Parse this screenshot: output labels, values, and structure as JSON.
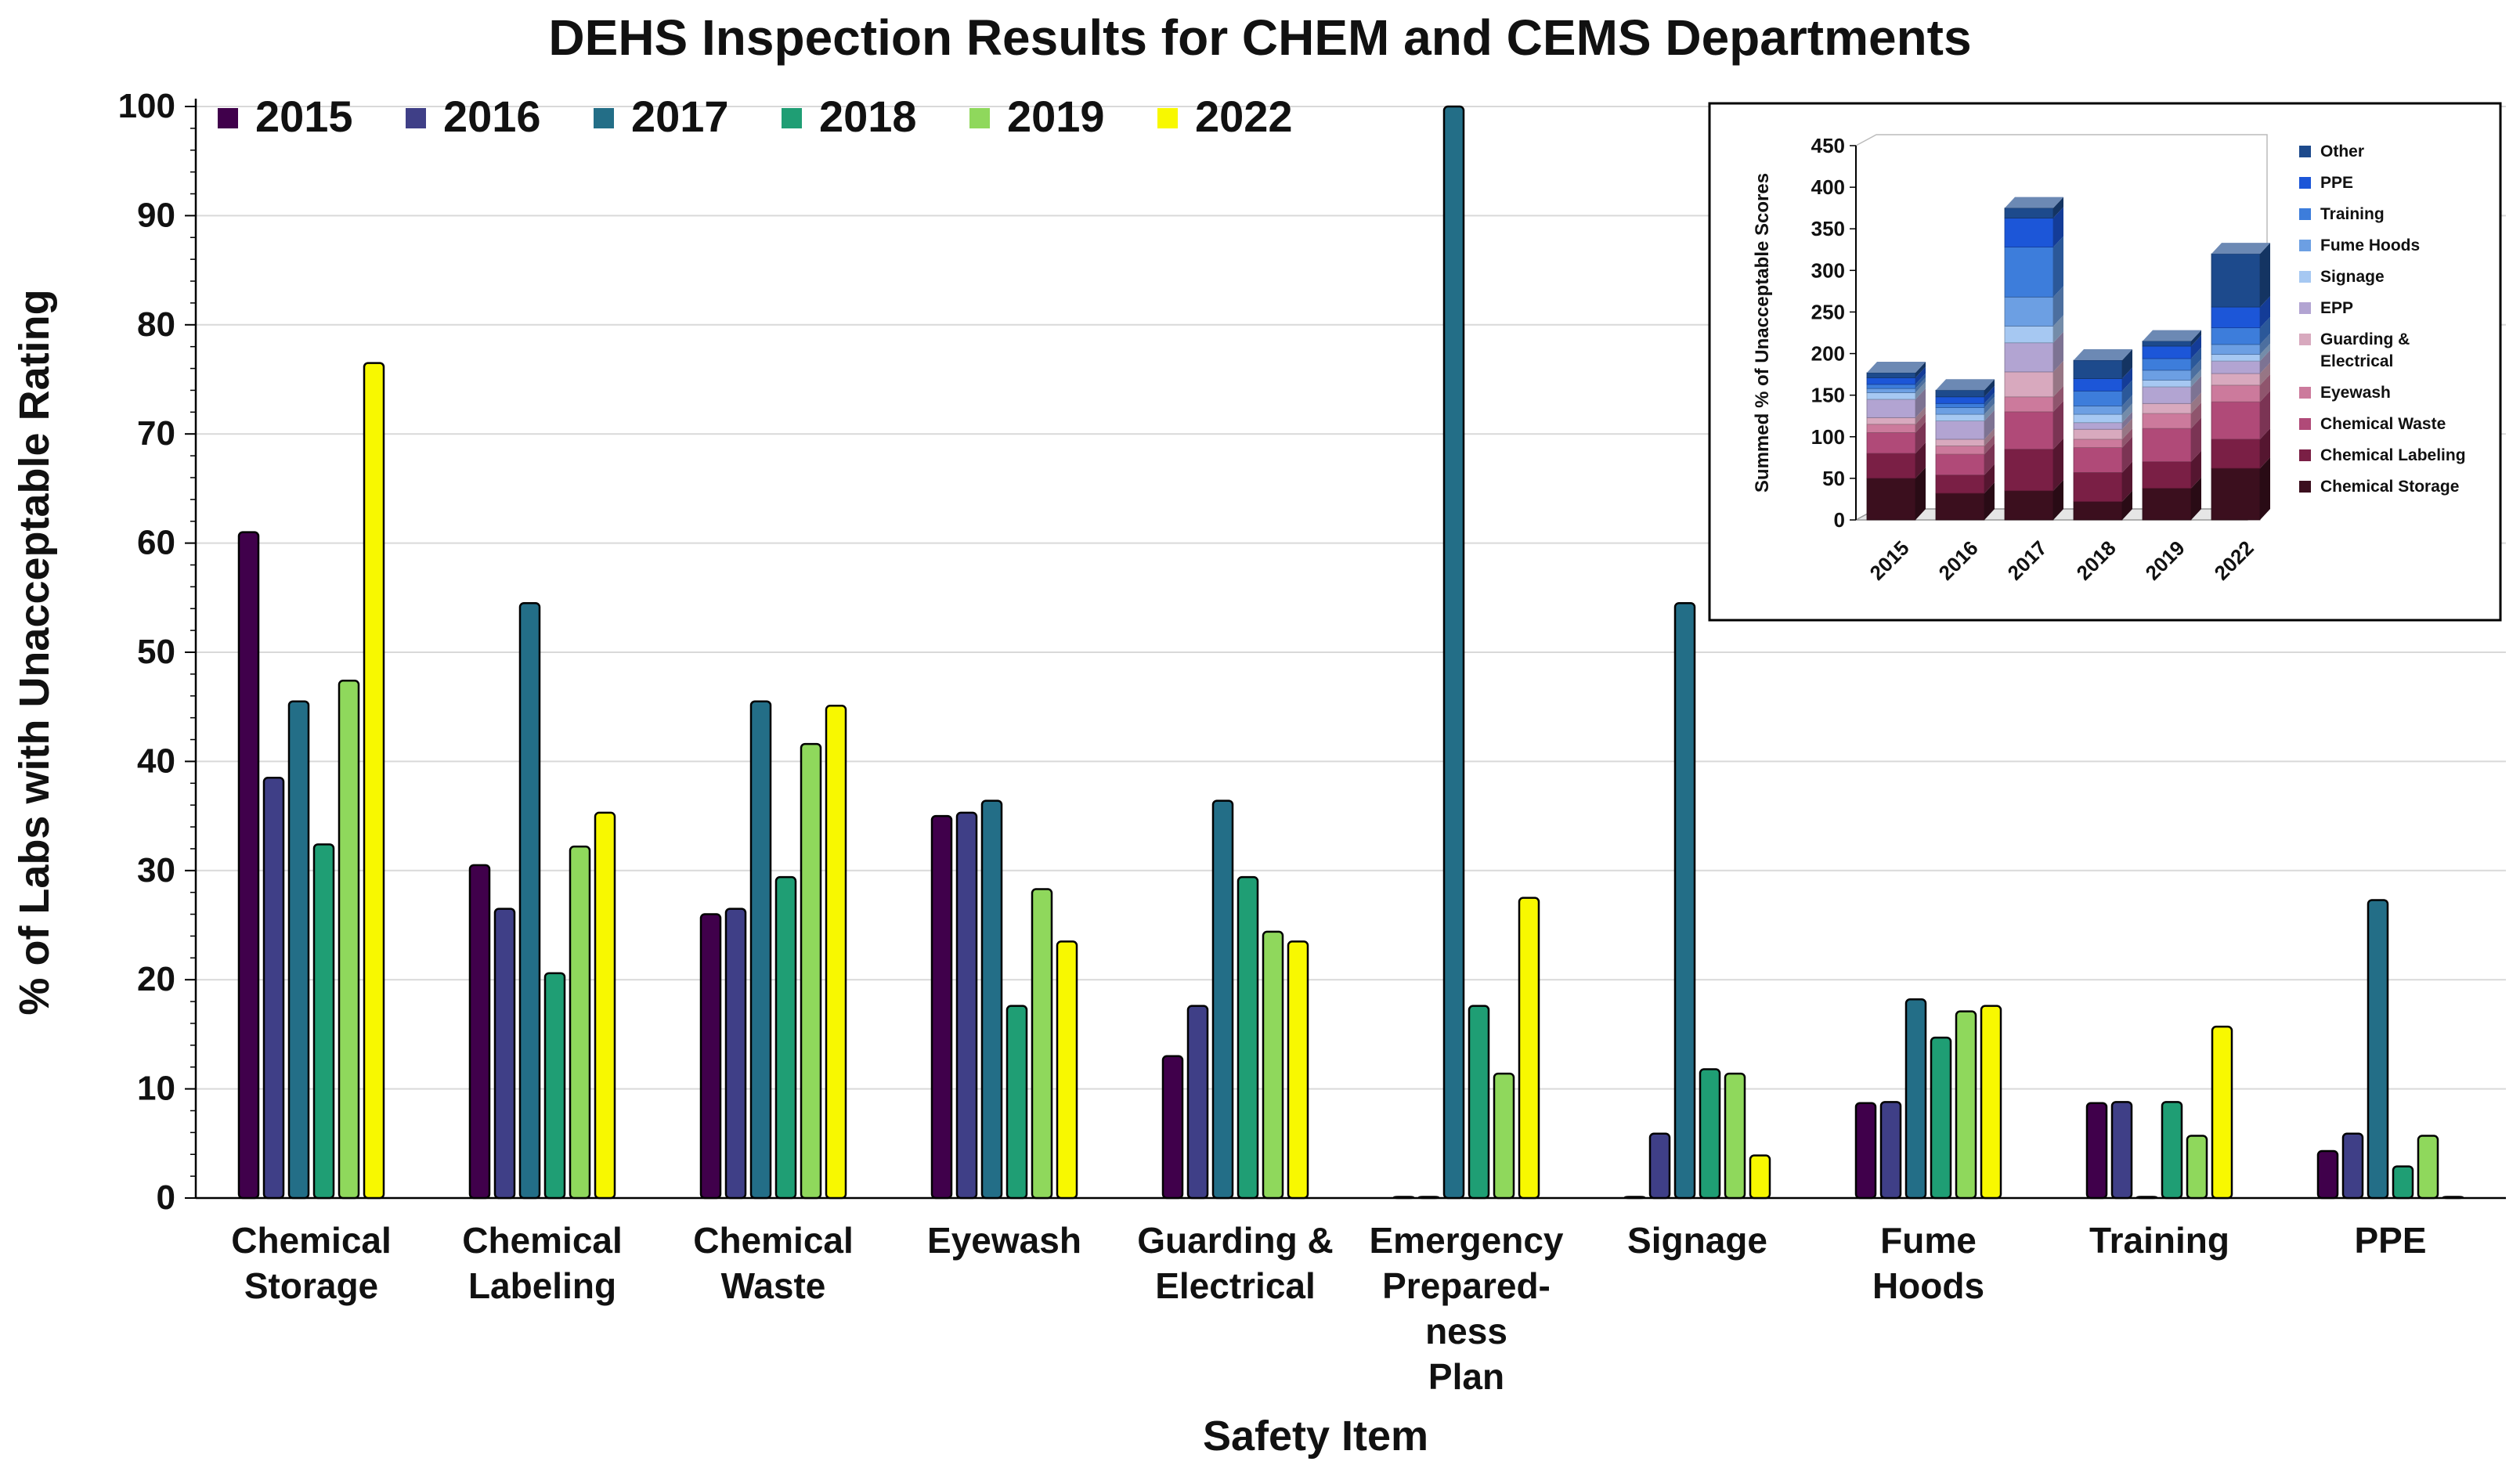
{
  "chart_data": [
    {
      "type": "bar",
      "title": "DEHS Inspection Results for CHEM and CEMS Departments",
      "xlabel": "Safety Item",
      "ylabel": "% of Labs with Unacceptable Rating",
      "ylim": [
        0,
        100
      ],
      "yticks": [
        0,
        10,
        20,
        30,
        40,
        50,
        60,
        70,
        80,
        90,
        100
      ],
      "grid": true,
      "legend_position": "top-left",
      "categories": [
        [
          "Chemical",
          "Storage"
        ],
        [
          "Chemical",
          "Labeling"
        ],
        [
          "Chemical",
          "Waste"
        ],
        [
          "Eyewash"
        ],
        [
          "Guarding &",
          "Electrical"
        ],
        [
          "Emergency",
          "Prepared-",
          "ness",
          "Plan"
        ],
        [
          "Signage"
        ],
        [
          "Fume",
          "Hoods"
        ],
        [
          "Training"
        ],
        [
          "PPE"
        ]
      ],
      "series": [
        {
          "name": "2015",
          "color": "#40004b",
          "values": [
            61,
            30.5,
            26,
            35,
            13,
            0,
            0,
            8.7,
            8.7,
            4.3
          ]
        },
        {
          "name": "2016",
          "color": "#3f3f87",
          "values": [
            38.5,
            26.5,
            26.5,
            35.3,
            17.6,
            0,
            5.9,
            8.8,
            8.8,
            5.9
          ]
        },
        {
          "name": "2017",
          "color": "#236e87",
          "values": [
            45.5,
            54.5,
            45.5,
            36.4,
            36.4,
            100,
            54.5,
            18.2,
            0,
            27.3
          ]
        },
        {
          "name": "2018",
          "color": "#1f9e74",
          "values": [
            32.4,
            20.6,
            29.4,
            17.6,
            29.4,
            17.6,
            11.8,
            14.7,
            8.8,
            2.9
          ]
        },
        {
          "name": "2019",
          "color": "#8fd85c",
          "values": [
            47.4,
            32.2,
            41.6,
            28.3,
            24.4,
            11.4,
            11.4,
            17.1,
            5.7,
            5.7
          ]
        },
        {
          "name": "2022",
          "color": "#f8f800",
          "values": [
            76.5,
            35.3,
            45.1,
            23.5,
            23.5,
            27.5,
            3.9,
            17.6,
            15.7,
            0
          ]
        }
      ]
    },
    {
      "type": "bar",
      "stacked": true,
      "title": "",
      "xlabel": "",
      "ylabel": "Summed % of Unacceptable Scores",
      "ylim": [
        0,
        450
      ],
      "yticks": [
        0,
        50,
        100,
        150,
        200,
        250,
        300,
        350,
        400,
        450
      ],
      "grid": false,
      "legend_position": "right",
      "categories": [
        "2015",
        "2016",
        "2017",
        "2018",
        "2019",
        "2022"
      ],
      "series": [
        {
          "name": "Chemical Storage",
          "color": "#3b0f1e",
          "values": [
            50,
            32,
            35,
            22,
            38,
            62
          ]
        },
        {
          "name": "Chemical Labeling",
          "color": "#7a1f45",
          "values": [
            30,
            22,
            50,
            35,
            32,
            35
          ]
        },
        {
          "name": "Chemical Waste",
          "color": "#b04a78",
          "values": [
            25,
            25,
            45,
            30,
            40,
            45
          ]
        },
        {
          "name": "Eyewash",
          "color": "#cc7a9c",
          "values": [
            10,
            10,
            18,
            10,
            18,
            20
          ]
        },
        {
          "name": "Guarding & Electrical",
          "color": "#d8a9be",
          "values": [
            8,
            8,
            30,
            12,
            12,
            14
          ]
        },
        {
          "name": "EPP",
          "color": "#b2a4d2",
          "values": [
            22,
            22,
            35,
            8,
            20,
            15
          ]
        },
        {
          "name": "Signage",
          "color": "#a6c8f2",
          "values": [
            8,
            8,
            20,
            10,
            8,
            8
          ]
        },
        {
          "name": "Fume Hoods",
          "color": "#6c9fe3",
          "values": [
            5,
            8,
            35,
            10,
            12,
            12
          ]
        },
        {
          "name": "Training",
          "color": "#3d7ddb",
          "values": [
            5,
            5,
            60,
            18,
            14,
            20
          ]
        },
        {
          "name": "PPE",
          "color": "#1c56d8",
          "values": [
            8,
            8,
            35,
            15,
            15,
            25
          ]
        },
        {
          "name": "Other",
          "color": "#1d4a8c",
          "values": [
            6,
            8,
            12,
            22,
            6,
            64
          ]
        }
      ],
      "legend_labels": [
        [
          "Other"
        ],
        [
          "PPE"
        ],
        [
          "Training"
        ],
        [
          "Fume Hoods"
        ],
        [
          "Signage"
        ],
        [
          "EPP"
        ],
        [
          "Guarding &",
          "Electrical"
        ],
        [
          "Eyewash"
        ],
        [
          "Chemical Waste"
        ],
        [
          "Chemical Labeling"
        ],
        [
          "Chemical Storage"
        ]
      ]
    }
  ]
}
